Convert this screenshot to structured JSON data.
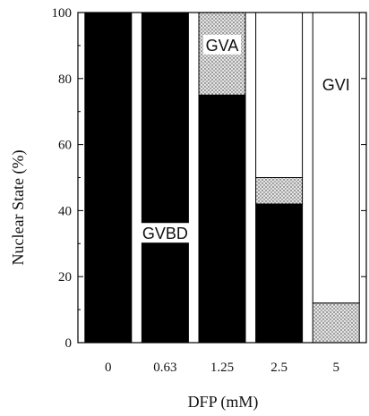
{
  "chart_data": {
    "type": "bar",
    "stacked": true,
    "xlabel": "DFP (mM)",
    "ylabel": "Nuclear State (%)",
    "ylim": [
      0,
      100
    ],
    "y_ticks": [
      "0",
      "20",
      "40",
      "60",
      "80",
      "100"
    ],
    "categories": [
      "0",
      "0.63",
      "1.25",
      "2.5",
      "5"
    ],
    "series": [
      {
        "name": "GVBD",
        "color": "#000000",
        "values": [
          100,
          100,
          75,
          42,
          0
        ]
      },
      {
        "name": "GVA",
        "color": "#c8c8c8",
        "values": [
          0,
          0,
          25,
          8,
          12
        ]
      },
      {
        "name": "GVI",
        "color": "#ffffff",
        "values": [
          0,
          0,
          0,
          50,
          88
        ]
      }
    ],
    "annotations": [
      {
        "text": "GVBD",
        "category": "0.63",
        "y": 33
      },
      {
        "text": "GVA",
        "category": "1.25",
        "y": 90
      },
      {
        "text": "GVI",
        "category": "5",
        "y": 78
      }
    ],
    "grid": false
  }
}
